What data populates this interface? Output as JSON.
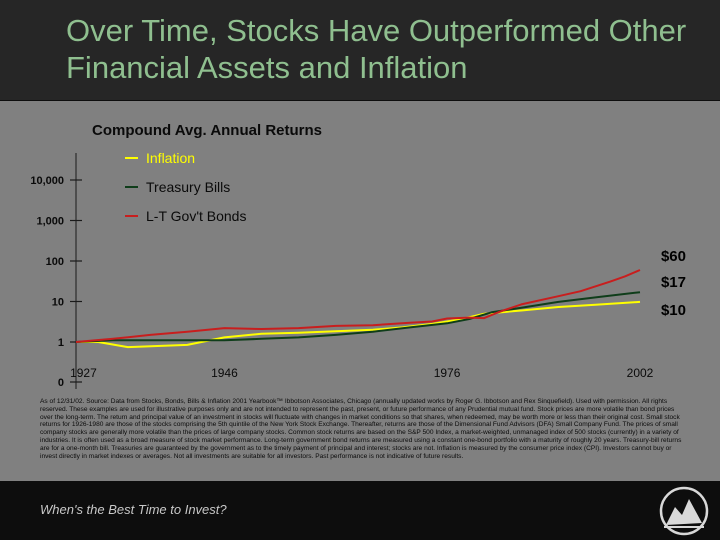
{
  "slide": {
    "title": "Over Time, Stocks Have Outperformed Other Financial Assets and Inflation",
    "footer_text": "When's the Best Time to Invest?",
    "footnote": "As of 12/31/02. Source: Data from Stocks, Bonds, Bills & Inflation 2001 Yearbook™ Ibbotson Associates, Chicago (annually updated works by Roger G. Ibbotson and Rex Sinquefield). Used with permission. All rights reserved. These examples are used for illustrative purposes only and are not intended to represent the past, present, or future performance of any Prudential mutual fund. Stock prices are more volatile than bond prices over the long-term. The return and principal value of an investment in stocks will fluctuate with changes in market conditions so that shares, when redeemed, may be worth more or less than their original cost. Small stock returns for 1926-1980 are those of the stocks comprising the 5th quintile of the New York Stock Exchange. Thereafter, returns are those of the Dimensional Fund Advisors (DFA) Small Company Fund. The prices of small company stocks are generally more volatile than the prices of large company stocks. Common stock returns are based on the S&P 500 Index, a market-weighted, unmanaged index of 500 stocks (currently) in a variety of industries. It is often used as a broad measure of stock market performance. Long-term government bond returns are measured using a constant one-bond portfolio with a maturity of roughly 20 years. Treasury-bill returns are for a one-month bill. Treasuries are guaranteed by the government as to the timely payment of principal and interest; stocks are not. Inflation is measured by the consumer price index (CPI). Investors cannot buy or invest directly in market indexes or averages. Not all investments are suitable for all investors. Past performance is not indicative of future results."
  },
  "chart_data": {
    "type": "line",
    "title": "Compound Avg. Annual Returns",
    "xlabel": "",
    "ylabel": "",
    "y_scale": "log",
    "yticks": [
      {
        "value": 1,
        "label": "1"
      },
      {
        "value": 10,
        "label": "10"
      },
      {
        "value": 100,
        "label": "100"
      },
      {
        "value": 1000,
        "label": "1,000"
      },
      {
        "value": 10000,
        "label": "10,000"
      }
    ],
    "y_zero_label": "0",
    "xticks": [
      {
        "value": 1927,
        "label": "1927"
      },
      {
        "value": 1946,
        "label": "1946"
      },
      {
        "value": 1976,
        "label": "1976"
      },
      {
        "value": 2002,
        "label": "2002"
      }
    ],
    "xlim": [
      1926,
      2002
    ],
    "legend_position": "top-center",
    "series": [
      {
        "name": "Inflation",
        "color": "#ffff00",
        "end_label": "$10",
        "x": [
          1926,
          1929,
          1933,
          1941,
          1946,
          1951,
          1956,
          1966,
          1970,
          1974,
          1976,
          1978,
          1981,
          1986,
          1991,
          1996,
          2002
        ],
        "values": [
          1.0,
          1.0,
          0.75,
          0.85,
          1.3,
          1.6,
          1.7,
          2.0,
          2.3,
          2.8,
          3.2,
          3.7,
          5.0,
          6.0,
          7.3,
          8.3,
          9.8
        ]
      },
      {
        "name": "Treasury Bills",
        "color": "#0f3d1a",
        "end_label": "$17",
        "x": [
          1926,
          1931,
          1940,
          1946,
          1951,
          1956,
          1961,
          1966,
          1971,
          1976,
          1979,
          1982,
          1986,
          1991,
          1996,
          2002
        ],
        "values": [
          1.0,
          1.1,
          1.1,
          1.1,
          1.2,
          1.3,
          1.5,
          1.8,
          2.3,
          2.9,
          3.7,
          5.4,
          7.0,
          9.8,
          12.6,
          17.0
        ]
      },
      {
        "name": "L-T Gov't Bonds",
        "color": "#c81e1e",
        "end_label": "$60",
        "x": [
          1926,
          1931,
          1936,
          1941,
          1946,
          1951,
          1956,
          1961,
          1966,
          1971,
          1974,
          1976,
          1979,
          1981,
          1983,
          1986,
          1991,
          1994,
          1998,
          2000,
          2002
        ],
        "values": [
          1.0,
          1.2,
          1.5,
          1.8,
          2.2,
          2.1,
          2.2,
          2.5,
          2.6,
          3.0,
          3.2,
          3.8,
          4.0,
          3.9,
          5.5,
          8.5,
          13.5,
          18.0,
          31.0,
          42.0,
          60.0
        ]
      }
    ]
  }
}
